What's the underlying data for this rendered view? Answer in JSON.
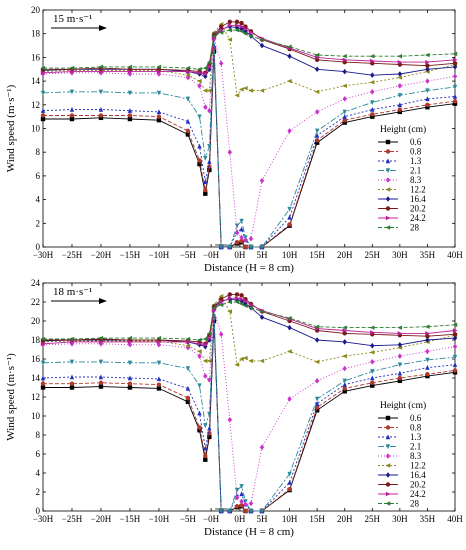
{
  "chart_data": [
    {
      "type": "line",
      "annotation": "15 m·s⁻¹",
      "xlabel": "Distance (H = 8 cm)",
      "ylabel": "Wind speed (m·s⁻¹)",
      "xlim": [
        -30,
        40
      ],
      "ylim": [
        0,
        20
      ],
      "xtick_values": [
        -30,
        -25,
        -20,
        -15,
        -10,
        -5,
        -1,
        1,
        5,
        10,
        15,
        20,
        25,
        30,
        35,
        40
      ],
      "xtick_labels": [
        "−30H",
        "−25H",
        "−20H",
        "−15H",
        "−10H",
        "−5H",
        "−0H",
        "0H",
        "5H",
        "10H",
        "15H",
        "20H",
        "25H",
        "30H",
        "35H",
        "40H"
      ],
      "ytick_values": [
        0,
        2,
        4,
        6,
        8,
        10,
        12,
        14,
        16,
        18,
        20
      ],
      "ytick_labels": [
        "0",
        "2",
        "4",
        "6",
        "8",
        "10",
        "12",
        "14",
        "16",
        "18",
        "20"
      ],
      "legend_title": "Height (cm)",
      "legend_position": "right",
      "grid": false,
      "x": [
        -30,
        -25,
        -20,
        -15,
        -10,
        -5,
        -3,
        -2,
        -1.3,
        -0.8,
        -0.3,
        0.3,
        0.8,
        1.3,
        2,
        3,
        5,
        10,
        15,
        20,
        25,
        30,
        35,
        40
      ],
      "series": [
        {
          "name": "0.6",
          "color": "#000000",
          "dash": "",
          "marker": "square",
          "values": [
            10.8,
            10.8,
            10.9,
            10.8,
            10.7,
            9.5,
            7,
            4.5,
            6.5,
            16.5,
            0,
            0,
            0.3,
            0.4,
            0,
            0,
            0,
            1.8,
            8.8,
            10.5,
            11,
            11.4,
            11.8,
            12.1
          ]
        },
        {
          "name": "0.8",
          "color": "#b03a2e",
          "dash": "4,2",
          "marker": "circle",
          "values": [
            11.1,
            11.1,
            11.1,
            11.1,
            11,
            9.8,
            7.3,
            4.8,
            6.8,
            16.8,
            0,
            0,
            0.4,
            0.5,
            0,
            0,
            0,
            1.9,
            9,
            10.7,
            11.2,
            11.6,
            12,
            12.3
          ]
        },
        {
          "name": "1.3",
          "color": "#1f2fbf",
          "dash": "2,2",
          "marker": "triangle-up",
          "values": [
            11.5,
            11.6,
            11.6,
            11.5,
            11.4,
            10.6,
            8.5,
            5.5,
            7.2,
            17,
            0,
            0,
            1.3,
            1.5,
            0.6,
            0,
            0,
            2.5,
            9.4,
            11,
            11.6,
            12,
            12.5,
            12.7
          ]
        },
        {
          "name": "2.1",
          "color": "#2a8a9a",
          "dash": "6,2,2,2",
          "marker": "triangle-down",
          "values": [
            13,
            13.1,
            13.1,
            13,
            13,
            12.5,
            11,
            7.5,
            8.5,
            17.4,
            0,
            0,
            1.8,
            2.2,
            0.8,
            0,
            0,
            3.2,
            9.8,
            11.4,
            12.2,
            12.8,
            13.2,
            13.5
          ]
        },
        {
          "name": "8.3",
          "color": "#cc33cc",
          "dash": "1,2",
          "marker": "diamond",
          "values": [
            14.6,
            14.7,
            14.7,
            14.6,
            14.6,
            14.3,
            13.6,
            11.8,
            11.5,
            17.6,
            15.5,
            8,
            1.2,
            0.8,
            0.6,
            0.7,
            5.6,
            9.8,
            11.4,
            12.5,
            13.1,
            13.6,
            14,
            14.4
          ]
        },
        {
          "name": "12.2",
          "color": "#8a8a1a",
          "dash": "2,2",
          "marker": "triangle-left",
          "values": [
            14.8,
            14.9,
            14.9,
            14.9,
            14.9,
            14.5,
            14,
            13.2,
            13.2,
            18.1,
            18.8,
            17.5,
            12.8,
            13.3,
            13.4,
            13.2,
            13.2,
            14,
            13.1,
            13.6,
            13.9,
            14.3,
            14.8,
            15.4
          ]
        },
        {
          "name": "16.4",
          "color": "#1a1a8a",
          "dash": "",
          "marker": "diamond",
          "values": [
            14.9,
            15,
            15,
            15,
            15,
            14.8,
            14.6,
            14.4,
            15,
            17.8,
            18.4,
            18.6,
            18.5,
            18.4,
            18.2,
            17.8,
            17,
            16.1,
            15,
            14.8,
            14.5,
            14.6,
            15,
            15.2
          ]
        },
        {
          "name": "20.2",
          "color": "#7a1a1a",
          "dash": "",
          "marker": "circle",
          "values": [
            15,
            15,
            15.1,
            15,
            15,
            14.9,
            14.8,
            14.7,
            15.4,
            17.9,
            18.6,
            19,
            19,
            18.9,
            18.6,
            18.2,
            17.5,
            16.7,
            15.8,
            15.6,
            15.5,
            15.4,
            15.3,
            15.5
          ]
        },
        {
          "name": "24.2",
          "color": "#bb2299",
          "dash": "",
          "marker": "triangle-right",
          "values": [
            14.7,
            14.8,
            14.8,
            14.8,
            14.8,
            14.8,
            14.7,
            14.6,
            15.2,
            17.6,
            18.3,
            18.7,
            18.7,
            18.6,
            18.4,
            18.1,
            17.6,
            16.8,
            16,
            15.8,
            15.7,
            15.6,
            15.6,
            15.8
          ]
        },
        {
          "name": "28",
          "color": "#2e7d32",
          "dash": "4,2",
          "marker": "triangle-left",
          "values": [
            15.1,
            15.1,
            15.2,
            15.2,
            15.2,
            15.1,
            15,
            15.1,
            15.6,
            17.8,
            18.1,
            18.3,
            18.3,
            18.2,
            18,
            17.8,
            17.5,
            16.9,
            16.2,
            16.1,
            16.1,
            16.1,
            16.2,
            16.3
          ]
        }
      ]
    },
    {
      "type": "line",
      "annotation": "18 m·s⁻¹",
      "xlabel": "Distance (H = 8 cm)",
      "ylabel": "Wind speed (m·s⁻¹)",
      "xlim": [
        -30,
        40
      ],
      "ylim": [
        0,
        24
      ],
      "xtick_values": [
        -30,
        -25,
        -20,
        -15,
        -10,
        -5,
        -1,
        1,
        5,
        10,
        15,
        20,
        25,
        30,
        35,
        40
      ],
      "xtick_labels": [
        "−30H",
        "−25H",
        "−20H",
        "−15H",
        "−10H",
        "−5H",
        "−0H",
        "0H",
        "5H",
        "10H",
        "15H",
        "20H",
        "25H",
        "30H",
        "35H",
        "40H"
      ],
      "ytick_values": [
        0,
        2,
        4,
        6,
        8,
        10,
        12,
        14,
        16,
        18,
        20,
        22,
        24
      ],
      "ytick_labels": [
        "0",
        "2",
        "4",
        "6",
        "8",
        "10",
        "12",
        "14",
        "16",
        "18",
        "20",
        "22",
        "24"
      ],
      "legend_title": "Height (cm)",
      "legend_position": "right",
      "grid": false,
      "x": [
        -30,
        -25,
        -20,
        -15,
        -10,
        -5,
        -3,
        -2,
        -1.3,
        -0.8,
        -0.3,
        0.3,
        0.8,
        1.3,
        2,
        3,
        5,
        10,
        15,
        20,
        25,
        30,
        35,
        40
      ],
      "series": [
        {
          "name": "0.6",
          "color": "#000000",
          "dash": "",
          "marker": "square",
          "values": [
            13,
            13,
            13.1,
            13,
            12.9,
            11.5,
            8.5,
            5.4,
            7.8,
            20,
            0,
            0,
            0.4,
            0.5,
            0,
            0,
            0,
            2.2,
            10.6,
            12.6,
            13.2,
            13.7,
            14.2,
            14.6
          ]
        },
        {
          "name": "0.8",
          "color": "#b03a2e",
          "dash": "4,2",
          "marker": "circle",
          "values": [
            13.4,
            13.4,
            13.5,
            13.4,
            13.3,
            11.9,
            8.8,
            5.8,
            8.2,
            20.3,
            0,
            0,
            0.5,
            0.6,
            0,
            0,
            0,
            2.3,
            10.9,
            12.9,
            13.5,
            14,
            14.4,
            14.8
          ]
        },
        {
          "name": "1.3",
          "color": "#1f2fbf",
          "dash": "2,2",
          "marker": "triangle-up",
          "values": [
            14,
            14.1,
            14.1,
            14,
            13.9,
            12.9,
            10.3,
            6.6,
            8.7,
            20.6,
            0,
            0,
            1.6,
            1.8,
            0.7,
            0,
            0,
            3,
            11.3,
            13.3,
            14,
            14.5,
            15.1,
            15.4
          ]
        },
        {
          "name": "2.1",
          "color": "#2a8a9a",
          "dash": "6,2,2,2",
          "marker": "triangle-down",
          "values": [
            15.6,
            15.7,
            15.7,
            15.6,
            15.6,
            15,
            13.2,
            9,
            10.2,
            21,
            0,
            0,
            2.2,
            2.6,
            1,
            0,
            0,
            3.9,
            11.8,
            13.7,
            14.7,
            15.4,
            15.9,
            16.2
          ]
        },
        {
          "name": "8.3",
          "color": "#cc33cc",
          "dash": "1,2",
          "marker": "diamond",
          "values": [
            17.5,
            17.6,
            17.6,
            17.5,
            17.5,
            17.2,
            16.3,
            14.2,
            13.8,
            21.2,
            18.6,
            9.6,
            1.4,
            1,
            0.7,
            0.8,
            6.7,
            11.8,
            13.7,
            15,
            15.7,
            16.3,
            16.8,
            17.3
          ]
        },
        {
          "name": "12.2",
          "color": "#8a8a1a",
          "dash": "2,2",
          "marker": "triangle-left",
          "values": [
            17.8,
            17.9,
            17.9,
            17.9,
            17.9,
            17.4,
            16.8,
            15.8,
            15.8,
            21.7,
            22.6,
            21,
            15.4,
            16,
            16.1,
            15.8,
            15.8,
            16.8,
            15.7,
            16.3,
            16.7,
            17.2,
            17.8,
            18.5
          ]
        },
        {
          "name": "16.4",
          "color": "#1a1a8a",
          "dash": "",
          "marker": "diamond",
          "values": [
            17.9,
            18,
            18,
            18,
            18,
            17.8,
            17.5,
            17.3,
            18,
            21.4,
            22.1,
            22.3,
            22.2,
            22.1,
            21.8,
            21.4,
            20.4,
            19.3,
            18,
            17.8,
            17.4,
            17.5,
            18,
            18.2
          ]
        },
        {
          "name": "20.2",
          "color": "#7a1a1a",
          "dash": "",
          "marker": "circle",
          "values": [
            18,
            18,
            18.1,
            18,
            18,
            17.9,
            17.8,
            17.6,
            18.5,
            21.5,
            22.3,
            22.8,
            22.8,
            22.7,
            22.3,
            21.8,
            21,
            20,
            19,
            18.7,
            18.6,
            18.5,
            18.4,
            18.6
          ]
        },
        {
          "name": "24.2",
          "color": "#bb2299",
          "dash": "",
          "marker": "triangle-right",
          "values": [
            17.6,
            17.8,
            17.8,
            17.8,
            17.8,
            17.8,
            17.6,
            17.5,
            18.2,
            21.1,
            22,
            22.4,
            22.4,
            22.3,
            22.1,
            21.7,
            21.1,
            20.2,
            19.2,
            19,
            18.8,
            18.7,
            18.7,
            19
          ]
        },
        {
          "name": "28",
          "color": "#2e7d32",
          "dash": "4,2",
          "marker": "triangle-left",
          "values": [
            18.1,
            18.1,
            18.2,
            18.2,
            18.2,
            18.1,
            18,
            18.1,
            18.7,
            21.4,
            21.7,
            22,
            22,
            21.8,
            21.6,
            21.4,
            21,
            20.3,
            19.4,
            19.3,
            19.3,
            19.3,
            19.4,
            19.6
          ]
        }
      ]
    }
  ]
}
